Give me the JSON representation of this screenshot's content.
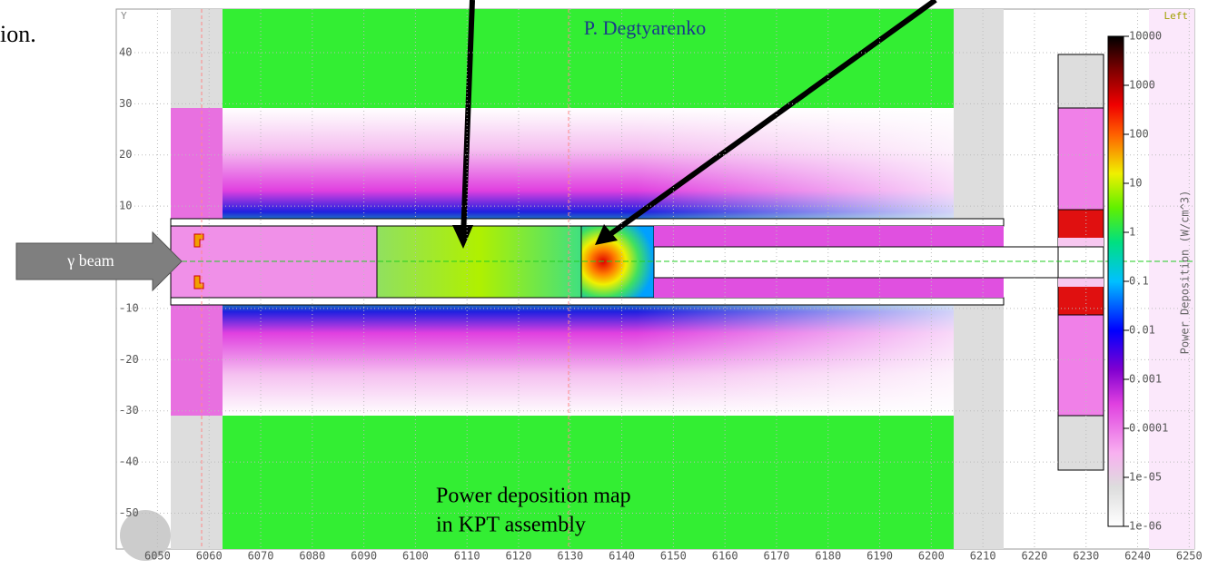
{
  "chart_data": {
    "type": "heatmap",
    "annotations": [
      "P. Degtyarenko",
      "Power deposition map",
      "in KPT assembly"
    ],
    "side_text": "ion.",
    "beam_label": "γ beam",
    "view_label": "Left",
    "y_axis_label": "Y",
    "xlim": [
      6042,
      6251
    ],
    "ylim": [
      -57,
      48.5
    ],
    "xticks": [
      6050,
      6060,
      6070,
      6080,
      6090,
      6100,
      6110,
      6120,
      6130,
      6140,
      6150,
      6160,
      6170,
      6180,
      6190,
      6200,
      6210,
      6220,
      6230,
      6240,
      6250
    ],
    "yticks": [
      -50,
      -40,
      -30,
      -20,
      -10,
      10,
      20,
      30,
      40
    ],
    "grid": true,
    "colorbar": {
      "title": "Power Deposition (W/cm^3)",
      "log": true,
      "lim": [
        1e-06,
        10000
      ],
      "ticks": [
        10000,
        1000,
        100,
        10,
        1,
        0.1,
        0.01,
        0.001,
        0.0001,
        {
          "value": 1e-05,
          "label": "1e-05"
        },
        {
          "value": 1e-06,
          "label": "1e-06"
        }
      ]
    }
  }
}
